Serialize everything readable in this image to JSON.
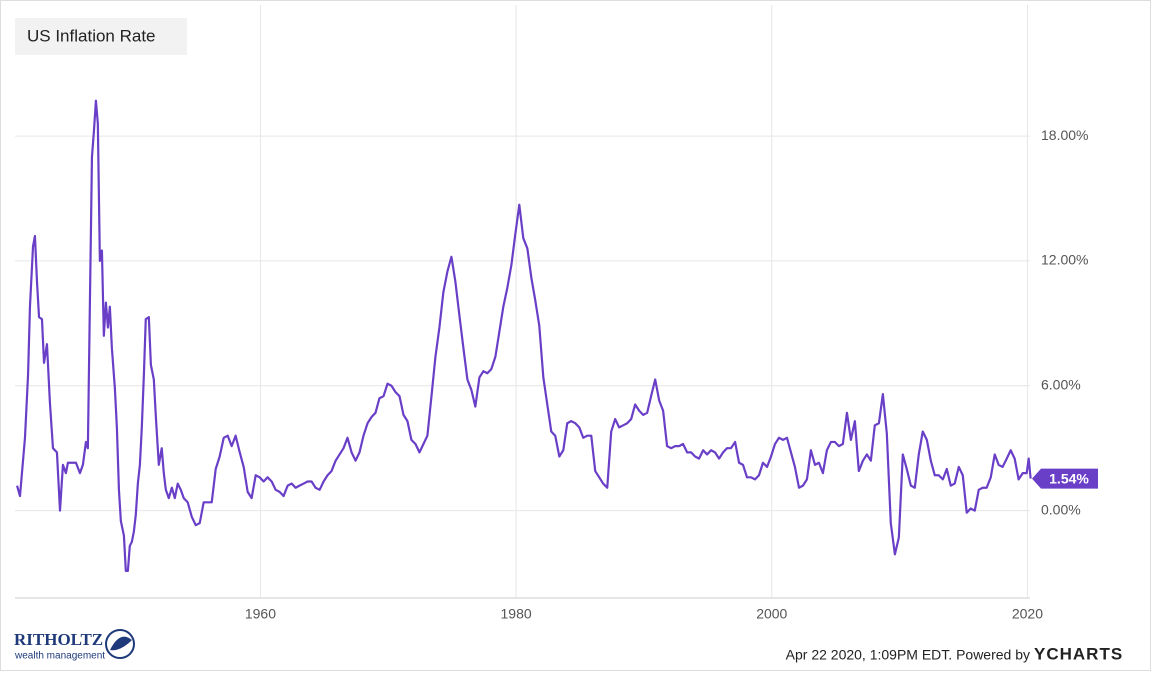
{
  "chart_data": {
    "type": "line",
    "title": "US Inflation Rate",
    "color": "#6a3fc8",
    "grid": true,
    "xlim": [
      1940.8,
      2020.2
    ],
    "ylim": [
      -4.2,
      24.3
    ],
    "xticks": [
      1960,
      1980,
      2000,
      2020
    ],
    "yticks": [
      {
        "value": 0,
        "label": "0.00%"
      },
      {
        "value": 6,
        "label": "6.00%"
      },
      {
        "value": 12,
        "label": "12.00%"
      },
      {
        "value": 18,
        "label": "18.00%"
      }
    ],
    "end_label": {
      "value": 1.54,
      "label": "1.54%"
    },
    "x": [
      1940.96,
      1941.19,
      1941.58,
      1941.82,
      1941.97,
      1942.21,
      1942.36,
      1942.52,
      1942.68,
      1942.91,
      1943.07,
      1943.3,
      1943.53,
      1943.77,
      1944.08,
      1944.32,
      1944.55,
      1944.78,
      1944.94,
      1945.25,
      1945.57,
      1945.88,
      1946.11,
      1946.35,
      1946.5,
      1946.66,
      1946.82,
      1946.97,
      1947.13,
      1947.28,
      1947.44,
      1947.6,
      1947.75,
      1947.91,
      1948.07,
      1948.22,
      1948.38,
      1948.61,
      1948.77,
      1948.93,
      1949.08,
      1949.32,
      1949.47,
      1949.63,
      1949.78,
      1949.94,
      1950.1,
      1950.25,
      1950.41,
      1950.57,
      1950.72,
      1950.88,
      1951.03,
      1951.27,
      1951.43,
      1951.66,
      1951.82,
      1952.05,
      1952.28,
      1952.44,
      1952.6,
      1952.83,
      1953.07,
      1953.3,
      1953.53,
      1953.77,
      1954.0,
      1954.31,
      1954.63,
      1954.94,
      1955.25,
      1955.56,
      1955.88,
      1956.19,
      1956.5,
      1956.81,
      1957.13,
      1957.44,
      1957.75,
      1958.06,
      1958.38,
      1958.69,
      1959.0,
      1959.31,
      1959.63,
      1959.94,
      1960.25,
      1960.56,
      1960.88,
      1961.19,
      1961.5,
      1961.81,
      1962.13,
      1962.44,
      1962.75,
      1963.06,
      1963.38,
      1963.69,
      1964.0,
      1964.31,
      1964.63,
      1964.94,
      1965.25,
      1965.56,
      1965.88,
      1966.19,
      1966.5,
      1966.81,
      1967.13,
      1967.44,
      1967.75,
      1968.06,
      1968.38,
      1968.69,
      1969.0,
      1969.31,
      1969.63,
      1969.94,
      1970.25,
      1970.56,
      1970.88,
      1971.19,
      1971.5,
      1971.81,
      1972.13,
      1972.44,
      1972.75,
      1973.06,
      1973.38,
      1973.69,
      1974.0,
      1974.31,
      1974.63,
      1974.94,
      1975.25,
      1975.56,
      1975.88,
      1976.19,
      1976.5,
      1976.81,
      1977.13,
      1977.44,
      1977.75,
      1978.06,
      1978.38,
      1978.69,
      1979.0,
      1979.31,
      1979.63,
      1979.94,
      1980.25,
      1980.56,
      1980.88,
      1981.19,
      1981.5,
      1981.81,
      1982.13,
      1982.44,
      1982.75,
      1983.06,
      1983.38,
      1983.69,
      1984.0,
      1984.31,
      1984.63,
      1984.94,
      1985.25,
      1985.56,
      1985.88,
      1986.19,
      1986.5,
      1986.81,
      1987.13,
      1987.44,
      1987.75,
      1988.06,
      1988.38,
      1988.69,
      1989.0,
      1989.31,
      1989.63,
      1989.94,
      1990.25,
      1990.56,
      1990.88,
      1991.19,
      1991.5,
      1991.81,
      1992.13,
      1992.44,
      1992.75,
      1993.06,
      1993.38,
      1993.69,
      1994.0,
      1994.31,
      1994.63,
      1994.94,
      1995.25,
      1995.56,
      1995.88,
      1996.19,
      1996.5,
      1996.81,
      1997.13,
      1997.44,
      1997.75,
      1998.06,
      1998.38,
      1998.69,
      1999.0,
      1999.31,
      1999.63,
      1999.94,
      2000.25,
      2000.56,
      2000.88,
      2001.19,
      2001.5,
      2001.81,
      2002.13,
      2002.44,
      2002.75,
      2003.06,
      2003.38,
      2003.69,
      2004.0,
      2004.31,
      2004.63,
      2004.94,
      2005.25,
      2005.56,
      2005.88,
      2006.19,
      2006.5,
      2006.81,
      2007.13,
      2007.44,
      2007.75,
      2008.06,
      2008.38,
      2008.69,
      2009.0,
      2009.31,
      2009.63,
      2009.94,
      2010.25,
      2010.56,
      2010.88,
      2011.19,
      2011.5,
      2011.81,
      2012.13,
      2012.44,
      2012.75,
      2013.06,
      2013.38,
      2013.69,
      2014.0,
      2014.31,
      2014.63,
      2014.94,
      2015.25,
      2015.56,
      2015.88,
      2016.19,
      2016.5,
      2016.81,
      2017.13,
      2017.44,
      2017.75,
      2018.06,
      2018.38,
      2018.69,
      2019.0,
      2019.31,
      2019.63,
      2019.94,
      2020.1,
      2020.25
    ],
    "values": [
      1.2,
      0.7,
      3.5,
      6.5,
      9.8,
      12.7,
      13.2,
      11.0,
      9.3,
      9.2,
      7.1,
      8.0,
      5.2,
      3.0,
      2.8,
      0.0,
      2.2,
      1.8,
      2.3,
      2.3,
      2.3,
      1.8,
      2.2,
      3.3,
      3.0,
      10.0,
      17.0,
      18.2,
      19.7,
      18.6,
      12.0,
      12.5,
      8.4,
      10.0,
      8.8,
      9.8,
      7.8,
      5.9,
      4.0,
      1.0,
      -0.5,
      -1.2,
      -2.9,
      -2.9,
      -1.7,
      -1.5,
      -1.0,
      -0.2,
      1.3,
      2.2,
      4.0,
      6.5,
      9.2,
      9.3,
      7.0,
      6.3,
      4.5,
      2.2,
      3.0,
      1.8,
      1.0,
      0.6,
      1.1,
      0.6,
      1.3,
      1.0,
      0.6,
      0.4,
      -0.3,
      -0.7,
      -0.6,
      0.4,
      0.4,
      0.4,
      2.0,
      2.6,
      3.5,
      3.6,
      3.1,
      3.6,
      2.8,
      2.1,
      0.9,
      0.6,
      1.7,
      1.6,
      1.4,
      1.6,
      1.4,
      1.0,
      0.9,
      0.7,
      1.2,
      1.3,
      1.1,
      1.2,
      1.3,
      1.4,
      1.4,
      1.1,
      1.0,
      1.4,
      1.7,
      1.9,
      2.4,
      2.7,
      3.0,
      3.5,
      2.8,
      2.4,
      2.8,
      3.6,
      4.2,
      4.5,
      4.7,
      5.4,
      5.5,
      6.1,
      6.0,
      5.7,
      5.5,
      4.6,
      4.3,
      3.4,
      3.2,
      2.8,
      3.2,
      3.6,
      5.5,
      7.4,
      8.8,
      10.5,
      11.5,
      12.2,
      11.0,
      9.4,
      7.8,
      6.3,
      5.8,
      5.0,
      6.4,
      6.7,
      6.6,
      6.8,
      7.4,
      8.6,
      9.8,
      10.7,
      11.8,
      13.3,
      14.7,
      13.1,
      12.6,
      11.2,
      10.1,
      8.9,
      6.4,
      5.1,
      3.8,
      3.6,
      2.6,
      2.9,
      4.2,
      4.3,
      4.2,
      4.0,
      3.5,
      3.6,
      3.6,
      1.9,
      1.6,
      1.3,
      1.1,
      3.8,
      4.4,
      4.0,
      4.1,
      4.2,
      4.4,
      5.1,
      4.8,
      4.6,
      4.7,
      5.5,
      6.3,
      5.3,
      4.8,
      3.1,
      3.0,
      3.1,
      3.1,
      3.2,
      2.8,
      2.8,
      2.6,
      2.5,
      2.9,
      2.7,
      2.9,
      2.8,
      2.5,
      2.8,
      3.0,
      3.0,
      3.3,
      2.3,
      2.2,
      1.6,
      1.6,
      1.5,
      1.7,
      2.3,
      2.1,
      2.6,
      3.2,
      3.5,
      3.4,
      3.5,
      2.8,
      2.1,
      1.1,
      1.2,
      1.5,
      2.9,
      2.2,
      2.3,
      1.8,
      2.9,
      3.3,
      3.3,
      3.1,
      3.2,
      4.7,
      3.4,
      4.3,
      1.9,
      2.4,
      2.7,
      2.4,
      4.1,
      4.2,
      5.6,
      3.7,
      -0.6,
      -2.1,
      -1.3,
      2.7,
      2.0,
      1.2,
      1.1,
      2.7,
      3.8,
      3.4,
      2.4,
      1.7,
      1.7,
      1.5,
      2.0,
      1.2,
      1.3,
      2.1,
      1.7,
      -0.1,
      0.1,
      0.0,
      1.0,
      1.1,
      1.1,
      1.6,
      2.7,
      2.2,
      2.1,
      2.5,
      2.9,
      2.5,
      1.5,
      1.8,
      1.8,
      2.5,
      1.54
    ]
  },
  "footer": {
    "brand": "RITHOLTZ",
    "brand_sub": "wealth management",
    "timestamp": "Apr 22 2020, 1:09PM EDT. Powered by",
    "provider": "YCHARTS"
  }
}
